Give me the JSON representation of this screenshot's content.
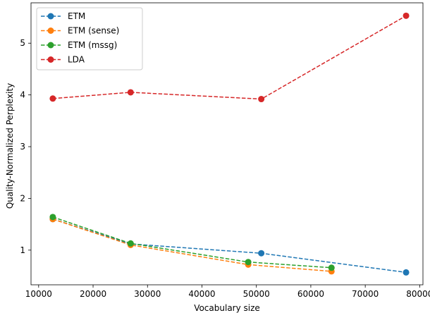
{
  "chart_data": {
    "type": "line",
    "title": "",
    "xlabel": "Vocabulary size",
    "ylabel": "Quality-Normalized Perplexity",
    "xlim": [
      8600,
      80600
    ],
    "ylim": [
      0.33,
      5.78
    ],
    "xticks": [
      10000,
      20000,
      30000,
      40000,
      50000,
      60000,
      70000,
      80000
    ],
    "yticks": [
      1,
      2,
      3,
      4,
      5
    ],
    "grid": false,
    "legend_position": "top-left",
    "series": [
      {
        "name": "ETM",
        "color": "#1f77b4",
        "x": [
          12600,
          26900,
          50900,
          77500
        ],
        "y": [
          1.6,
          1.12,
          0.94,
          0.57
        ]
      },
      {
        "name": "ETM (sense)",
        "color": "#ff7f0e",
        "x": [
          12600,
          26900,
          48500,
          63800
        ],
        "y": [
          1.6,
          1.1,
          0.72,
          0.59
        ]
      },
      {
        "name": "ETM (mssg)",
        "color": "#2ca02c",
        "x": [
          12600,
          26900,
          48500,
          63800
        ],
        "y": [
          1.64,
          1.13,
          0.77,
          0.66
        ]
      },
      {
        "name": "LDA",
        "color": "#d62728",
        "x": [
          12600,
          26900,
          50900,
          77500
        ],
        "y": [
          3.93,
          4.05,
          3.92,
          5.53
        ]
      }
    ]
  }
}
